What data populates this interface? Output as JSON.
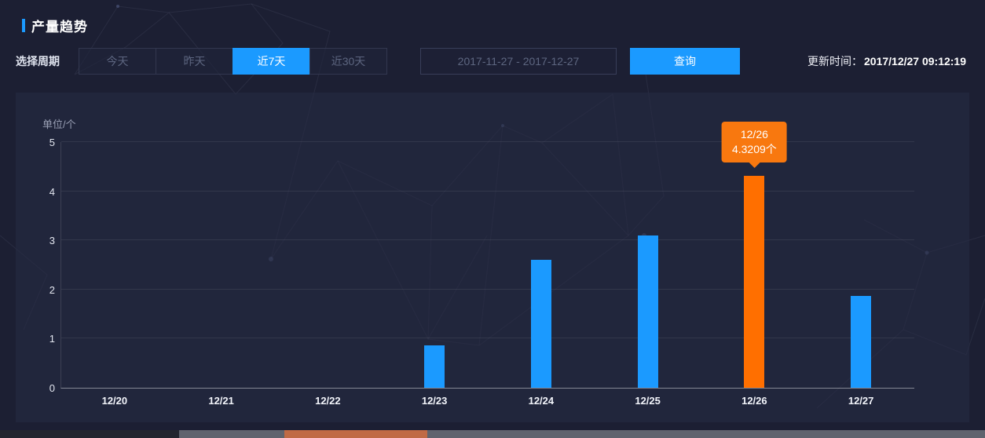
{
  "colors": {
    "blue": "#1b9aff",
    "orange": "#ff6f00",
    "tooltip_orange": "#f8780f"
  },
  "header": {
    "title": "产量趋势"
  },
  "filters": {
    "period_label": "选择周期",
    "periods": [
      "今天",
      "昨天",
      "近7天",
      "近30天"
    ],
    "selected_index": 2,
    "selected_period": "近7天",
    "date_range": "2017-11-27 - 2017-12-27",
    "query_button": "查询",
    "update_time_label": "更新时间：",
    "update_time": "2017/12/27 09:12:19"
  },
  "chart_data": {
    "type": "bar",
    "title": "产量趋势",
    "unit_label": "单位/个",
    "xlabel": "",
    "ylabel": "单位/个",
    "categories": [
      "12/20",
      "12/21",
      "12/22",
      "12/23",
      "12/24",
      "12/25",
      "12/26",
      "12/27"
    ],
    "values": [
      0,
      0,
      0,
      0.87,
      2.6,
      3.1,
      4.3209,
      1.87
    ],
    "highlight_index": 6,
    "ylim": [
      0,
      5
    ],
    "yticks": [
      0,
      1,
      2,
      3,
      4,
      5
    ],
    "grid": true,
    "legend": false,
    "tooltip": {
      "category": "12/26",
      "value_text": "4.3209个"
    }
  }
}
